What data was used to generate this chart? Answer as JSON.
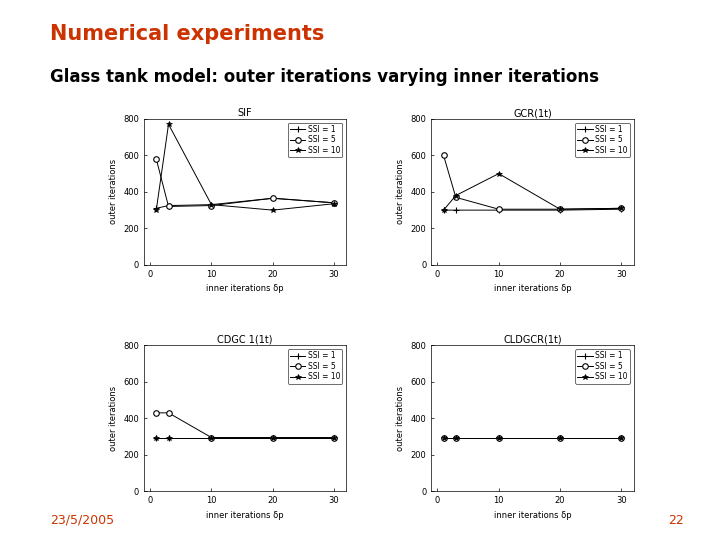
{
  "title": "Numerical experiments",
  "subtitle": "Glass tank model: outer iterations varying inner iterations",
  "date": "23/5/2005",
  "page": "22",
  "title_color": "#cc3300",
  "footer_color": "#cc3300",
  "x_vals": [
    1,
    3,
    10,
    20,
    30
  ],
  "xlabel": "inner iterations δp",
  "ylabel": "outer iterations",
  "plots": [
    {
      "title": "SIF",
      "ssi1": [
        310,
        325,
        330,
        365,
        340
      ],
      "ssi5": [
        580,
        320,
        325,
        365,
        340
      ],
      "ssi10": [
        300,
        770,
        330,
        300,
        335
      ],
      "ylim": [
        0,
        800
      ],
      "yticks": [
        0,
        200,
        400,
        600,
        800
      ]
    },
    {
      "title": "GCR(1t)",
      "ssi1": [
        300,
        300,
        300,
        300,
        305
      ],
      "ssi5": [
        600,
        370,
        305,
        305,
        310
      ],
      "ssi10": [
        300,
        380,
        500,
        305,
        310
      ],
      "ylim": [
        0,
        800
      ],
      "yticks": [
        0,
        200,
        400,
        600,
        800
      ]
    },
    {
      "title": "CDGC 1(1t)",
      "ssi1": [
        295,
        295,
        295,
        295,
        295
      ],
      "ssi5": [
        430,
        430,
        295,
        295,
        295
      ],
      "ssi10": [
        295,
        295,
        295,
        295,
        295
      ],
      "ylim": [
        0,
        800
      ],
      "yticks": [
        0,
        200,
        400,
        600,
        800
      ]
    },
    {
      "title": "CLDGCR(1t)",
      "ssi1": [
        295,
        295,
        295,
        295,
        295
      ],
      "ssi5": [
        295,
        295,
        295,
        295,
        295
      ],
      "ssi10": [
        295,
        295,
        295,
        295,
        295
      ],
      "ylim": [
        0,
        800
      ],
      "yticks": [
        0,
        200,
        400,
        600,
        800
      ]
    }
  ],
  "xticks": [
    0,
    10,
    20,
    30
  ],
  "xlim": [
    -1,
    32
  ]
}
